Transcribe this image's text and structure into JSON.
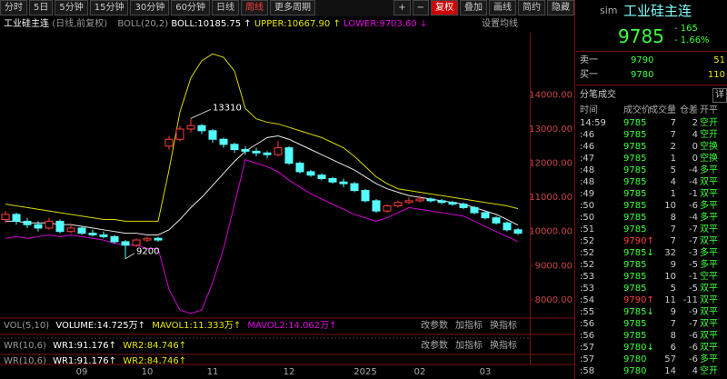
{
  "toolbar": {
    "periods": [
      "分时",
      "5日",
      "5分钟",
      "15分钟",
      "30分钟",
      "60分钟",
      "日线",
      "周线",
      "更多周期"
    ],
    "tools": [
      "+",
      "−",
      "复权",
      "叠加",
      "画线",
      "简约",
      "隐藏"
    ]
  },
  "chart_data": {
    "type": "candlestick",
    "title": "工业硅主连",
    "subtitle": "(日线,前复权)",
    "indicator": "BOLL(20,2)",
    "indicator_values": [
      "BOLL:10185.75 ↑",
      "UPPER:10667.90 ↑",
      "LOWER:9703.60 ↓"
    ],
    "setting": "设置均线",
    "categories": [
      null,
      null,
      null,
      null,
      null,
      null,
      null,
      "09",
      null,
      null,
      null,
      null,
      null,
      "10",
      null,
      null,
      null,
      null,
      null,
      "11",
      null,
      null,
      null,
      null,
      null,
      null,
      "12",
      null,
      null,
      null,
      null,
      null,
      null,
      "2025",
      null,
      null,
      null,
      null,
      "02",
      null,
      null,
      null,
      null,
      null,
      "03",
      null,
      null,
      null
    ],
    "open": [
      10350,
      10500,
      10300,
      10200,
      10100,
      10300,
      10000,
      10100,
      9950,
      9900,
      9850,
      9700,
      9600,
      9750,
      9800,
      12500,
      12700,
      13000,
      13100,
      12950,
      12700,
      12550,
      12400,
      12350,
      12300,
      12250,
      12450,
      12000,
      11750,
      11650,
      11550,
      11450,
      11400,
      11200,
      10900,
      10600,
      10750,
      10850,
      10900,
      10950,
      10900,
      10850,
      10800,
      10700,
      10550,
      10400,
      10250,
      10050
    ],
    "high": [
      10600,
      10550,
      10400,
      10300,
      10400,
      10350,
      10200,
      10150,
      10050,
      10000,
      9900,
      9750,
      9800,
      9850,
      9850,
      12800,
      13100,
      13310,
      13150,
      13000,
      12750,
      12600,
      12500,
      12450,
      12350,
      12650,
      12500,
      12050,
      11800,
      11700,
      11600,
      11550,
      11450,
      11250,
      10950,
      10800,
      10900,
      11000,
      11050,
      11000,
      10950,
      10900,
      10850,
      10750,
      10600,
      10450,
      10300,
      10100
    ],
    "low": [
      10250,
      10200,
      10100,
      10000,
      10050,
      9950,
      9950,
      9900,
      9850,
      9800,
      9650,
      9200,
      9550,
      9700,
      9700,
      12400,
      12650,
      12900,
      12850,
      12600,
      12450,
      12300,
      12250,
      12200,
      12150,
      12200,
      11950,
      11700,
      11600,
      11500,
      11400,
      11300,
      11150,
      10850,
      10550,
      10550,
      10700,
      10800,
      10850,
      10850,
      10800,
      10750,
      10650,
      10500,
      10350,
      10200,
      10000,
      9900
    ],
    "close": [
      10500,
      10300,
      10200,
      10100,
      10300,
      10000,
      10100,
      9950,
      9900,
      9850,
      9700,
      9600,
      9750,
      9800,
      9750,
      12700,
      13000,
      13100,
      12950,
      12700,
      12550,
      12400,
      12350,
      12300,
      12250,
      12450,
      12000,
      11750,
      11650,
      11550,
      11450,
      11400,
      11200,
      10900,
      10600,
      10750,
      10850,
      10900,
      10950,
      10900,
      10850,
      10800,
      10700,
      10550,
      10400,
      10250,
      10050,
      9950
    ],
    "up_color": "#ff3c3c",
    "down_color": "#54ffff",
    "bands": [
      {
        "color": "#e8e8e8",
        "values": [
          10300,
          10300,
          10250,
          10250,
          10250,
          10200,
          10200,
          10150,
          10100,
          10050,
          10000,
          9950,
          9950,
          9900,
          9900,
          10050,
          10350,
          10700,
          11000,
          11350,
          11700,
          12050,
          12350,
          12550,
          12750,
          12800,
          12700,
          12550,
          12400,
          12250,
          12100,
          11950,
          11800,
          11600,
          11400,
          11250,
          11150,
          11050,
          11000,
          10950,
          10900,
          10850,
          10800,
          10700,
          10600,
          10500,
          10350,
          10185.75
        ]
      },
      {
        "color": "#d8d800",
        "values": [
          10800,
          10750,
          10700,
          10650,
          10600,
          10550,
          10500,
          10450,
          10400,
          10350,
          10350,
          10300,
          10300,
          10300,
          10300,
          11800,
          13500,
          14500,
          15000,
          15200,
          15100,
          14700,
          13600,
          13300,
          13200,
          13150,
          13050,
          12950,
          12850,
          12750,
          12600,
          12450,
          12200,
          11900,
          11600,
          11400,
          11250,
          11200,
          11150,
          11100,
          11050,
          11000,
          10950,
          10900,
          10850,
          10800,
          10750,
          10667.9
        ]
      },
      {
        "color": "#d000d0",
        "values": [
          9800,
          9850,
          9800,
          9850,
          9900,
          9850,
          9900,
          9850,
          9800,
          9750,
          9650,
          9600,
          9600,
          9500,
          9500,
          8300,
          7700,
          7600,
          7700,
          8500,
          9500,
          10800,
          12100,
          12000,
          11900,
          11750,
          11500,
          11300,
          11100,
          10950,
          10800,
          10650,
          10500,
          10400,
          10300,
          10400,
          10550,
          10700,
          10650,
          10600,
          10550,
          10500,
          10450,
          10300,
          10150,
          10000,
          9850,
          9703.6
        ]
      }
    ],
    "ylim": [
      7490,
      15820
    ],
    "yticks": [
      {
        "value": 14000,
        "label": "14000.00"
      },
      {
        "value": 13000,
        "label": "13000.00"
      },
      {
        "value": 12000,
        "label": "12000.00"
      },
      {
        "value": 11000,
        "label": "11000.00"
      },
      {
        "value": 10000,
        "label": "10000.00"
      },
      {
        "value": 9000,
        "label": "9000.00"
      },
      {
        "value": 8000,
        "label": "8000.00"
      }
    ],
    "max_label": "13310",
    "min_label": "9200"
  },
  "volume_panel": {
    "name": "VOL(5,10)",
    "values": [
      "VOLUME:14.725万↑",
      "MAVOL1:11.333万↑",
      "MAVOL2:14.062万↑"
    ]
  },
  "wr_panel": {
    "name": "WR(10,6)",
    "values": [
      "WR1:91.176↑",
      "WR2:84.746↑"
    ]
  },
  "panel_buttons": [
    "改参数",
    "加指标",
    "换指标"
  ],
  "quote": {
    "account": "sim",
    "name": "工业硅主连",
    "price": 9785,
    "change": "- 165",
    "change_pct": "- 1.66%"
  },
  "order_book": [
    {
      "label": "卖一",
      "price": 9790,
      "volume": 51
    },
    {
      "label": "买一",
      "price": 9780,
      "volume": 110
    }
  ],
  "trades_title": "分笔成交",
  "detail_button": "详",
  "trades_header": [
    "时间",
    "成交价",
    "成交量",
    "仓差",
    "开平"
  ],
  "trades": [
    {
      "time": "14:59",
      "price": "9785",
      "volume": 7,
      "change": 2,
      "type": "空开",
      "color": "#3cff3c"
    },
    {
      "time": ":46",
      "price": "9785",
      "volume": 7,
      "change": 4,
      "type": "空开",
      "color": "#3cff3c"
    },
    {
      "time": ":46",
      "price": "9785",
      "volume": 2,
      "change": 0,
      "type": "空换",
      "color": "#3cff3c"
    },
    {
      "time": ":47",
      "price": "9785",
      "volume": 1,
      "change": 0,
      "type": "空换",
      "color": "#3cff3c"
    },
    {
      "time": ":48",
      "price": "9785",
      "volume": 5,
      "change": -4,
      "type": "多平",
      "color": "#3cff3c"
    },
    {
      "time": ":48",
      "price": "9785",
      "volume": 4,
      "change": -4,
      "type": "双平",
      "color": "#3cff3c"
    },
    {
      "time": ":49",
      "price": "9785",
      "volume": 1,
      "change": -1,
      "type": "双平",
      "color": "#3cff3c"
    },
    {
      "time": ":50",
      "price": "9785",
      "volume": 10,
      "change": -6,
      "type": "多平",
      "color": "#3cff3c"
    },
    {
      "time": ":50",
      "price": "9785",
      "volume": 8,
      "change": -4,
      "type": "多平",
      "color": "#3cff3c"
    },
    {
      "time": ":51",
      "price": "9785",
      "volume": 7,
      "change": -7,
      "type": "双平",
      "color": "#3cff3c"
    },
    {
      "time": ":52",
      "price": "9790↑",
      "volume": 7,
      "change": -7,
      "type": "双平",
      "color": "#ff3c3c"
    },
    {
      "time": ":52",
      "price": "9785↓",
      "volume": 32,
      "change": -3,
      "type": "多平",
      "color": "#3cff3c"
    },
    {
      "time": ":52",
      "price": "9785",
      "volume": 9,
      "change": -5,
      "type": "多平",
      "color": "#3cff3c"
    },
    {
      "time": ":53",
      "price": "9785",
      "volume": 10,
      "change": -1,
      "type": "空平",
      "color": "#3cff3c"
    },
    {
      "time": ":53",
      "price": "9785",
      "volume": 5,
      "change": -5,
      "type": "双平",
      "color": "#3cff3c"
    },
    {
      "time": ":54",
      "price": "9790↑",
      "volume": 11,
      "change": -11,
      "type": "双平",
      "color": "#ff3c3c"
    },
    {
      "time": ":55",
      "price": "9785↓",
      "volume": 9,
      "change": -9,
      "type": "双平",
      "color": "#3cff3c"
    },
    {
      "time": ":56",
      "price": "9785",
      "volume": 7,
      "change": -7,
      "type": "双平",
      "color": "#3cff3c"
    },
    {
      "time": ":56",
      "price": "9785",
      "volume": 8,
      "change": -6,
      "type": "双平",
      "color": "#3cff3c"
    },
    {
      "time": ":57",
      "price": "9780↓",
      "volume": 6,
      "change": -6,
      "type": "双平",
      "color": "#3cff3c"
    },
    {
      "time": ":57",
      "price": "9780",
      "volume": 57,
      "change": -6,
      "type": "多平",
      "color": "#3cff3c"
    },
    {
      "time": ":58",
      "price": "9780",
      "volume": 14,
      "change": 4,
      "type": "空开",
      "color": "#3cff3c"
    }
  ]
}
